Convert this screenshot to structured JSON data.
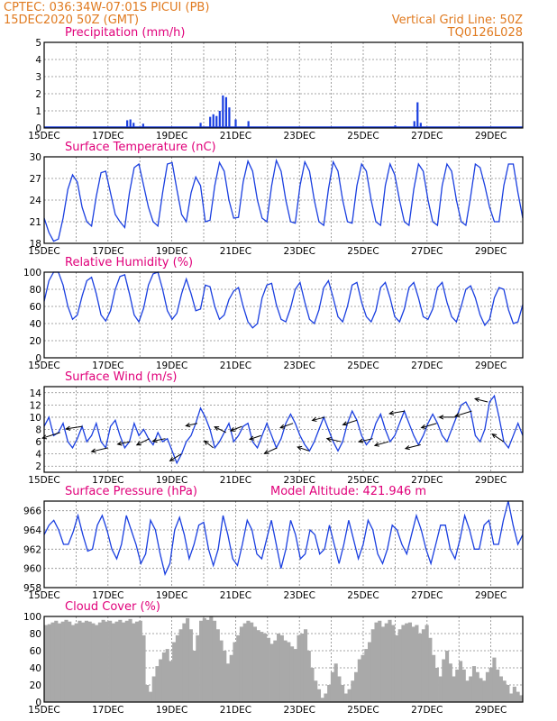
{
  "header": {
    "line1_left": "CPTEC:   036:34W-07:01S   PICUI (PB)",
    "line2_left": "15DEC2020 50Z (GMT)",
    "line1_right": "Vertical Grid Line: 50Z",
    "line2_right": "TQ0126L028"
  },
  "colors": {
    "header": "#e07a1f",
    "title": "#e0007a",
    "series": "#1a3fe0",
    "cloud": "#a9a9a9",
    "wind": "#000000"
  },
  "x_tick_labels": [
    "15DEC",
    "17DEC",
    "19DEC",
    "21DEC",
    "23DEC",
    "25DEC",
    "27DEC",
    "29DEC"
  ],
  "chart_data": [
    {
      "type": "bar",
      "title": "Precipitation (mm/h)",
      "ylim": [
        0,
        5
      ],
      "yticks": [
        0,
        1,
        2,
        3,
        4,
        5
      ],
      "x": [
        2.6,
        2.7,
        2.8,
        3.1,
        4.9,
        5.2,
        5.3,
        5.4,
        5.5,
        5.6,
        5.7,
        5.8,
        6.0,
        6.4,
        11.0,
        11.6,
        11.7,
        11.8
      ],
      "values": [
        0.45,
        0.5,
        0.3,
        0.25,
        0.3,
        0.65,
        0.8,
        0.7,
        1.0,
        1.9,
        1.8,
        1.2,
        0.5,
        0.4,
        0.15,
        0.4,
        1.5,
        0.3
      ]
    },
    {
      "type": "line",
      "title": "Surface Temperature (nC)",
      "ylim": [
        18,
        30
      ],
      "yticks": [
        18,
        21,
        24,
        27,
        30
      ],
      "y": [
        21.5,
        19.5,
        18.3,
        18.6,
        21.5,
        25.5,
        27.5,
        26.5,
        23.0,
        21.0,
        20.4,
        24.5,
        27.8,
        28.0,
        25.0,
        22.0,
        21.0,
        20.2,
        25.0,
        28.5,
        29.0,
        26.0,
        23.0,
        21.0,
        20.4,
        25.0,
        29.0,
        29.2,
        25.5,
        22.0,
        21.0,
        25.0,
        27.2,
        26.0,
        21.0,
        21.2,
        26.0,
        29.2,
        28.0,
        24.0,
        21.5,
        21.6,
        26.5,
        29.4,
        28.0,
        24.0,
        21.5,
        21.0,
        26.0,
        29.5,
        28.0,
        24.0,
        21.0,
        20.8,
        26.0,
        29.3,
        28.0,
        24.0,
        21.0,
        20.5,
        25.5,
        29.3,
        28.0,
        24.0,
        21.0,
        20.8,
        26.0,
        29.0,
        28.0,
        24.0,
        21.0,
        20.5,
        26.0,
        29.0,
        27.5,
        24.0,
        21.0,
        20.5,
        25.5,
        29.0,
        28.0,
        24.0,
        21.0,
        20.5,
        26.0,
        29.0,
        28.0,
        24.0,
        21.0,
        20.5,
        24.5,
        29.0,
        28.5,
        26.0,
        23.0,
        21.0,
        21.0,
        26.0,
        29.0,
        29.0,
        25.0,
        21.5
      ]
    },
    {
      "type": "line",
      "title": "Relative Humidity (%)",
      "ylim": [
        0,
        100
      ],
      "yticks": [
        0,
        20,
        40,
        60,
        80,
        100
      ],
      "y": [
        66,
        90,
        100,
        100,
        85,
        60,
        45,
        50,
        72,
        90,
        94,
        75,
        50,
        43,
        55,
        80,
        95,
        97,
        75,
        50,
        42,
        58,
        85,
        98,
        100,
        80,
        55,
        45,
        52,
        75,
        92,
        75,
        55,
        57,
        85,
        83,
        60,
        45,
        50,
        68,
        78,
        82,
        60,
        42,
        35,
        40,
        70,
        85,
        87,
        62,
        45,
        42,
        58,
        80,
        88,
        65,
        45,
        40,
        56,
        82,
        90,
        70,
        48,
        42,
        60,
        85,
        88,
        65,
        48,
        42,
        55,
        82,
        88,
        70,
        48,
        42,
        57,
        82,
        88,
        70,
        48,
        45,
        57,
        82,
        88,
        65,
        48,
        42,
        60,
        80,
        84,
        70,
        50,
        38,
        45,
        70,
        82,
        80,
        56,
        40,
        42,
        62
      ]
    },
    {
      "type": "line",
      "title": "Surface Wind (m/s)",
      "ylim": [
        1,
        15
      ],
      "yticks": [
        2,
        4,
        6,
        8,
        10,
        12,
        14
      ],
      "y": [
        8.5,
        10.0,
        7.0,
        7.5,
        9.0,
        6.0,
        5.0,
        6.5,
        8.5,
        6.0,
        7.0,
        9.0,
        6.0,
        5.0,
        8.5,
        9.5,
        7.0,
        5.0,
        6.0,
        9.0,
        7.0,
        8.0,
        6.5,
        5.5,
        7.5,
        6.0,
        6.5,
        4.5,
        2.5,
        4.0,
        6.0,
        7.0,
        9.0,
        11.5,
        10.0,
        8.0,
        5.0,
        6.0,
        7.5,
        9.0,
        6.0,
        7.0,
        8.5,
        9.0,
        6.0,
        5.0,
        7.0,
        9.0,
        7.0,
        5.0,
        6.5,
        9.0,
        10.5,
        9.0,
        7.0,
        5.5,
        4.5,
        6.0,
        8.0,
        10.0,
        8.0,
        6.0,
        4.5,
        6.0,
        9.0,
        11.0,
        9.5,
        7.0,
        5.5,
        6.5,
        9.0,
        10.5,
        8.0,
        6.0,
        7.0,
        9.0,
        11.0,
        9.0,
        7.0,
        5.5,
        7.0,
        9.0,
        10.5,
        9.0,
        7.0,
        6.0,
        8.0,
        10.0,
        12.0,
        12.5,
        11.0,
        7.0,
        6.0,
        8.0,
        12.5,
        13.5,
        10.0,
        6.0,
        5.0,
        7.0,
        9.0,
        7.0
      ],
      "arrows": [
        {
          "x": 0.5,
          "dir": [
            -1.4,
            0.45
          ]
        },
        {
          "x": 1.2,
          "dir": [
            -1.3,
            0.2
          ]
        },
        {
          "x": 2.0,
          "dir": [
            -1.3,
            0.3
          ]
        },
        {
          "x": 2.7,
          "dir": [
            -1.0,
            0.2
          ]
        },
        {
          "x": 3.3,
          "dir": [
            -1.0,
            0.5
          ]
        },
        {
          "x": 3.8,
          "dir": [
            -1.0,
            0.2
          ]
        },
        {
          "x": 4.3,
          "dir": [
            -0.9,
            0.55
          ]
        },
        {
          "x": 4.8,
          "dir": [
            -0.9,
            0.2
          ]
        },
        {
          "x": 5.3,
          "dir": [
            -0.7,
            -0.55
          ]
        },
        {
          "x": 5.7,
          "dir": [
            -0.9,
            -0.45
          ]
        },
        {
          "x": 6.2,
          "dir": [
            -0.9,
            0.35
          ]
        },
        {
          "x": 6.8,
          "dir": [
            -0.9,
            0.3
          ]
        },
        {
          "x": 7.3,
          "dir": [
            -1.0,
            0.45
          ]
        },
        {
          "x": 7.8,
          "dir": [
            -1.0,
            0.35
          ]
        },
        {
          "x": 8.3,
          "dir": [
            -0.9,
            -0.3
          ]
        },
        {
          "x": 8.8,
          "dir": [
            -1.0,
            0.25
          ]
        },
        {
          "x": 9.3,
          "dir": [
            -1.1,
            -0.25
          ]
        },
        {
          "x": 9.8,
          "dir": [
            -1.1,
            0.35
          ]
        },
        {
          "x": 10.3,
          "dir": [
            -1.1,
            0.25
          ]
        },
        {
          "x": 10.8,
          "dir": [
            -1.1,
            0.3
          ]
        },
        {
          "x": 11.3,
          "dir": [
            -1.2,
            0.2
          ]
        },
        {
          "x": 11.8,
          "dir": [
            -1.2,
            0.3
          ]
        },
        {
          "x": 12.3,
          "dir": [
            -1.2,
            0.35
          ]
        },
        {
          "x": 12.9,
          "dir": [
            -1.3,
            0.0
          ]
        },
        {
          "x": 13.4,
          "dir": [
            -1.3,
            0.4
          ]
        },
        {
          "x": 13.9,
          "dir": [
            -1.0,
            -0.25
          ]
        },
        {
          "x": 14.4,
          "dir": [
            -0.9,
            -0.6
          ]
        }
      ]
    },
    {
      "type": "line",
      "title": "Surface Pressure (hPa)",
      "subtitle": "Model Altitude: 421.946  m",
      "ylim": [
        958,
        967
      ],
      "yticks": [
        958,
        960,
        962,
        964,
        966
      ],
      "y": [
        963.5,
        964.5,
        965.0,
        964.0,
        962.5,
        962.5,
        963.8,
        965.5,
        963.5,
        961.8,
        962.0,
        964.5,
        965.5,
        964.0,
        962.0,
        961.0,
        962.5,
        965.5,
        964.0,
        962.5,
        960.5,
        961.5,
        965.0,
        964.0,
        961.5,
        959.4,
        960.5,
        964.0,
        965.3,
        963.5,
        961.0,
        962.5,
        964.5,
        964.8,
        962.0,
        960.3,
        962.0,
        965.5,
        963.5,
        961.0,
        960.3,
        962.5,
        965.0,
        964.0,
        961.5,
        961.0,
        963.0,
        965.0,
        962.5,
        960.0,
        962.0,
        965.0,
        963.5,
        961.0,
        961.5,
        964.0,
        963.5,
        961.5,
        962.0,
        964.5,
        962.5,
        960.5,
        962.5,
        965.0,
        963.0,
        961.0,
        962.5,
        965.0,
        964.0,
        961.5,
        960.5,
        962.0,
        964.5,
        964.0,
        962.5,
        961.5,
        963.5,
        965.5,
        964.0,
        962.0,
        960.5,
        962.5,
        964.5,
        964.5,
        962.0,
        961.0,
        963.0,
        965.5,
        964.0,
        962.0,
        962.0,
        964.5,
        965.0,
        962.5,
        962.5,
        965.0,
        967.0,
        964.5,
        962.5,
        963.5
      ]
    },
    {
      "type": "area",
      "title": "Cloud Cover (%)",
      "ylim": [
        0,
        100
      ],
      "yticks": [
        0,
        20,
        40,
        60,
        80,
        100
      ],
      "y": [
        90,
        91,
        93,
        95,
        92,
        94,
        96,
        94,
        90,
        92,
        95,
        93,
        95,
        94,
        92,
        90,
        93,
        96,
        94,
        95,
        92,
        94,
        96,
        93,
        95,
        97,
        92,
        94,
        95,
        78,
        20,
        12,
        30,
        42,
        50,
        58,
        62,
        48,
        70,
        78,
        85,
        92,
        98,
        85,
        60,
        78,
        95,
        98,
        96,
        100,
        95,
        85,
        72,
        60,
        45,
        55,
        70,
        78,
        88,
        92,
        95,
        93,
        88,
        84,
        82,
        80,
        75,
        68,
        72,
        80,
        78,
        72,
        70,
        65,
        62,
        78,
        80,
        85,
        60,
        40,
        25,
        15,
        5,
        10,
        20,
        35,
        45,
        30,
        20,
        10,
        15,
        25,
        35,
        50,
        55,
        62,
        70,
        85,
        93,
        95,
        88,
        92,
        96,
        90,
        78,
        85,
        90,
        92,
        93,
        88,
        90,
        80,
        85,
        90,
        75,
        55,
        40,
        30,
        50,
        60,
        45,
        30,
        38,
        48,
        38,
        25,
        30,
        42,
        35,
        28,
        25,
        35,
        40,
        52,
        38,
        30,
        25,
        20,
        10,
        18,
        12,
        8
      ]
    }
  ]
}
